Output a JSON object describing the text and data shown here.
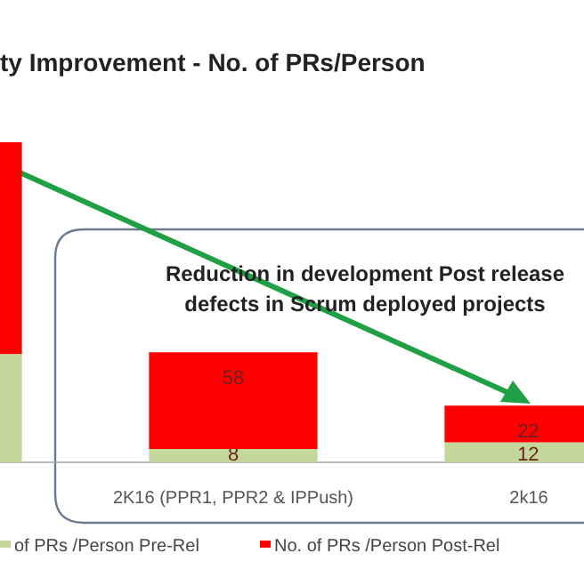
{
  "chart_data": {
    "type": "bar",
    "stacked": true,
    "title": "ty Improvement - No. of PRs/Person",
    "categories": [
      null,
      "2K16 (PPR1, PPR2 & IPPush)",
      "2k16"
    ],
    "series": [
      {
        "name": "of PRs /Person Pre-Rel",
        "color": "#c4d79b",
        "values": [
          65,
          8,
          12
        ],
        "value_labels": [
          null,
          "8",
          "12"
        ]
      },
      {
        "name": "No. of PRs /Person Post-Rel",
        "color": "#ff0000",
        "values": [
          127,
          58,
          22
        ],
        "value_labels": [
          null,
          "58",
          "22"
        ]
      }
    ],
    "annotations": [
      "Reduction in development Post release defects in Scrum deployed projects"
    ],
    "legend": "bottom"
  }
}
